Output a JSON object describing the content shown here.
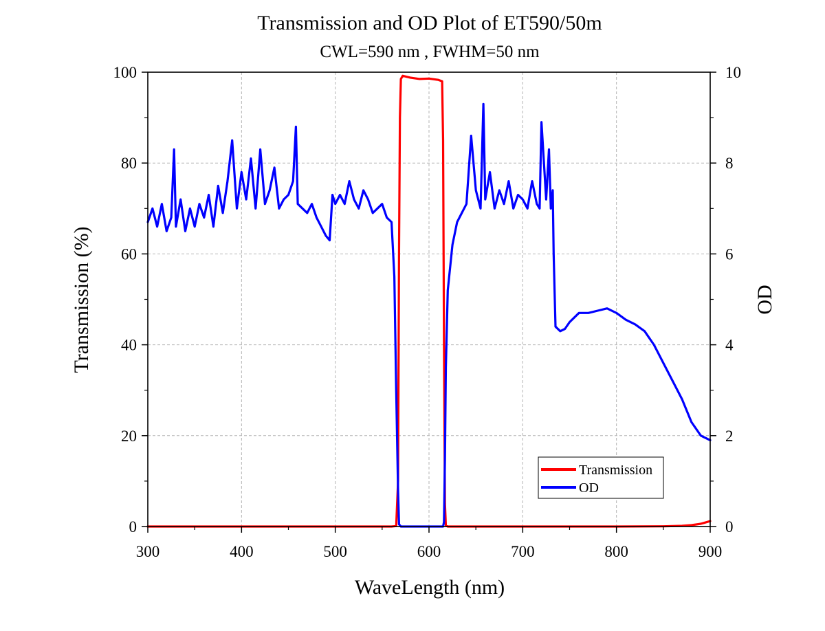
{
  "chart_data": {
    "type": "line",
    "title": "Transmission and OD Plot of ET590/50m",
    "subtitle": "CWL=590 nm , FWHM=50 nm",
    "xlabel": "WaveLength (nm)",
    "ylabel": "Transmission (%)",
    "y2label": "OD",
    "xlim": [
      300,
      900
    ],
    "ylim": [
      0,
      100
    ],
    "y2lim": [
      0,
      10
    ],
    "xticks": [
      300,
      400,
      500,
      600,
      700,
      800,
      900
    ],
    "yticks": [
      0,
      20,
      40,
      60,
      80,
      100
    ],
    "y2ticks": [
      0,
      2,
      4,
      6,
      8,
      10
    ],
    "grid": true,
    "legend_position": "bottom-right",
    "series": [
      {
        "name": "Transmission",
        "axis": "left",
        "color": "#ff0000",
        "x": [
          300,
          560,
          565,
          567,
          568,
          569,
          570,
          572,
          580,
          590,
          600,
          610,
          614,
          615,
          616,
          617,
          618,
          620,
          700,
          800,
          850,
          870,
          880,
          890,
          895,
          900
        ],
        "y": [
          0,
          0,
          0.1,
          10,
          60,
          90,
          98.5,
          99.2,
          98.8,
          98.5,
          98.6,
          98.3,
          98,
          85,
          40,
          5,
          0.2,
          0,
          0,
          0,
          0.05,
          0.15,
          0.3,
          0.6,
          0.9,
          1.2
        ]
      },
      {
        "name": "OD",
        "axis": "right",
        "color": "#0000ff",
        "x": [
          300,
          305,
          310,
          315,
          320,
          325,
          328,
          330,
          335,
          340,
          345,
          350,
          355,
          360,
          365,
          370,
          375,
          380,
          385,
          390,
          395,
          400,
          405,
          410,
          415,
          420,
          425,
          430,
          435,
          440,
          445,
          450,
          455,
          458,
          460,
          465,
          470,
          475,
          480,
          485,
          490,
          494,
          497,
          500,
          505,
          510,
          515,
          520,
          525,
          530,
          535,
          540,
          545,
          550,
          555,
          560,
          563,
          565,
          567,
          568,
          570,
          580,
          590,
          600,
          610,
          615,
          616,
          617,
          618,
          620,
          625,
          630,
          635,
          640,
          645,
          650,
          655,
          658,
          660,
          665,
          670,
          675,
          680,
          685,
          690,
          695,
          700,
          705,
          710,
          715,
          718,
          720,
          725,
          728,
          730,
          732,
          733,
          735,
          740,
          745,
          750,
          760,
          770,
          780,
          790,
          800,
          810,
          820,
          830,
          840,
          850,
          860,
          870,
          880,
          890,
          900
        ],
        "y": [
          6.7,
          7.0,
          6.6,
          7.1,
          6.5,
          6.8,
          8.3,
          6.6,
          7.2,
          6.5,
          7.0,
          6.6,
          7.1,
          6.8,
          7.3,
          6.6,
          7.5,
          6.9,
          7.6,
          8.5,
          7.0,
          7.8,
          7.2,
          8.1,
          7.0,
          8.3,
          7.1,
          7.4,
          7.9,
          7.0,
          7.2,
          7.3,
          7.6,
          8.8,
          7.1,
          7.0,
          6.9,
          7.1,
          6.8,
          6.6,
          6.4,
          6.3,
          7.3,
          7.1,
          7.3,
          7.1,
          7.6,
          7.2,
          7.0,
          7.4,
          7.2,
          6.9,
          7.0,
          7.1,
          6.8,
          6.7,
          5.5,
          3.0,
          0.8,
          0.05,
          0,
          0,
          0,
          0,
          0,
          0,
          0.1,
          1.5,
          3.5,
          5.2,
          6.2,
          6.7,
          6.9,
          7.1,
          8.6,
          7.4,
          7.0,
          9.3,
          7.2,
          7.8,
          7.0,
          7.4,
          7.1,
          7.6,
          7.0,
          7.3,
          7.2,
          7.0,
          7.6,
          7.1,
          7.0,
          8.9,
          7.2,
          8.3,
          7.0,
          7.4,
          6.0,
          4.4,
          4.3,
          4.35,
          4.5,
          4.7,
          4.7,
          4.75,
          4.8,
          4.7,
          4.55,
          4.45,
          4.3,
          4.0,
          3.6,
          3.2,
          2.8,
          2.3,
          2.0,
          1.9
        ]
      }
    ]
  }
}
